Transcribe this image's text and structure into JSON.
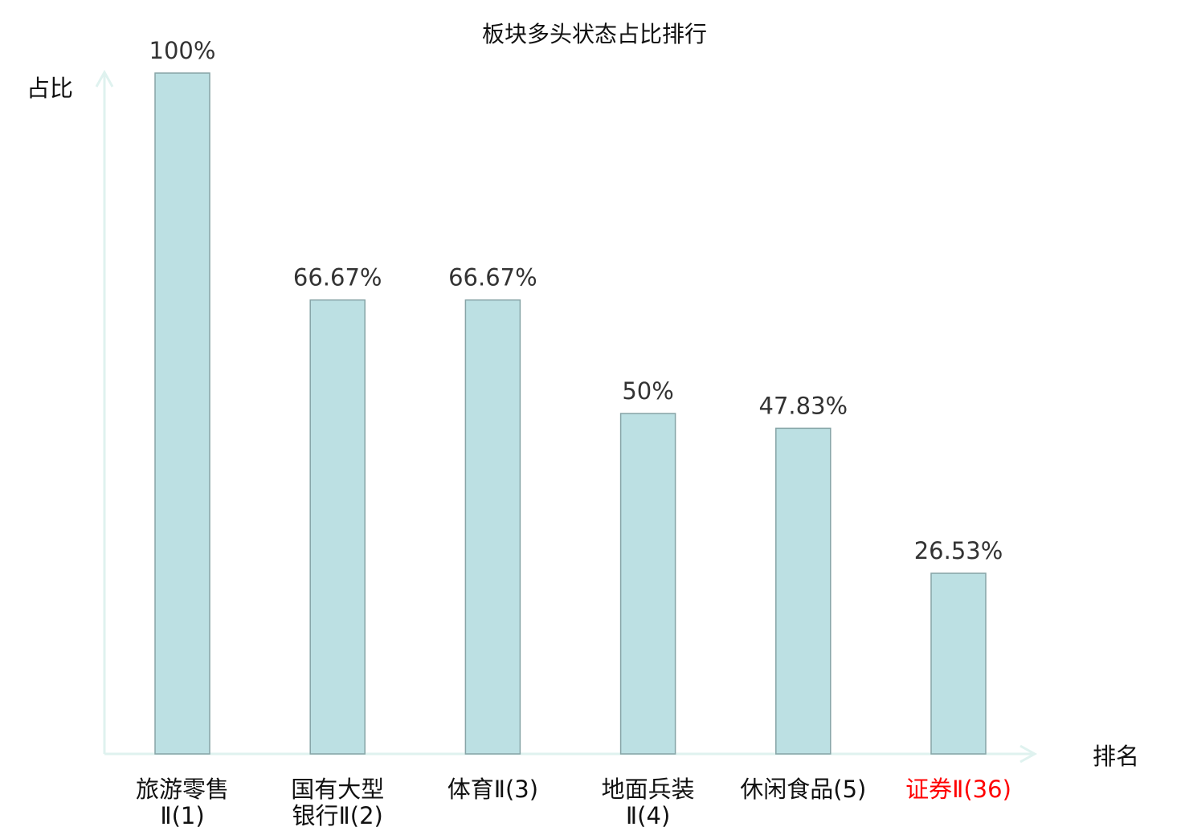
{
  "chart_data": {
    "type": "bar",
    "title": "板块多头状态占比排行",
    "xlabel": "排名",
    "ylabel": "占比",
    "ylim": [
      0,
      100
    ],
    "grid": false,
    "categories": [
      [
        "旅游零售",
        "Ⅱ(1)"
      ],
      [
        "国有大型",
        "银行Ⅱ(2)"
      ],
      [
        "体育Ⅱ(3)"
      ],
      [
        "地面兵装",
        "Ⅱ(4)"
      ],
      [
        "休闲食品(5)"
      ],
      [
        "证券Ⅱ(36)"
      ]
    ],
    "values": [
      100,
      66.67,
      66.67,
      50,
      47.83,
      26.53
    ],
    "data_labels": [
      "100%",
      "66.67%",
      "66.67%",
      "50%",
      "47.83%",
      "26.53%"
    ],
    "highlight_index": 5,
    "colors": {
      "bar": "#bce0e3",
      "bar_edge": "#86a4a6",
      "axis": "#dff2ef",
      "label": "#333333",
      "tick": "#111111",
      "highlight": "#ff0000"
    }
  }
}
